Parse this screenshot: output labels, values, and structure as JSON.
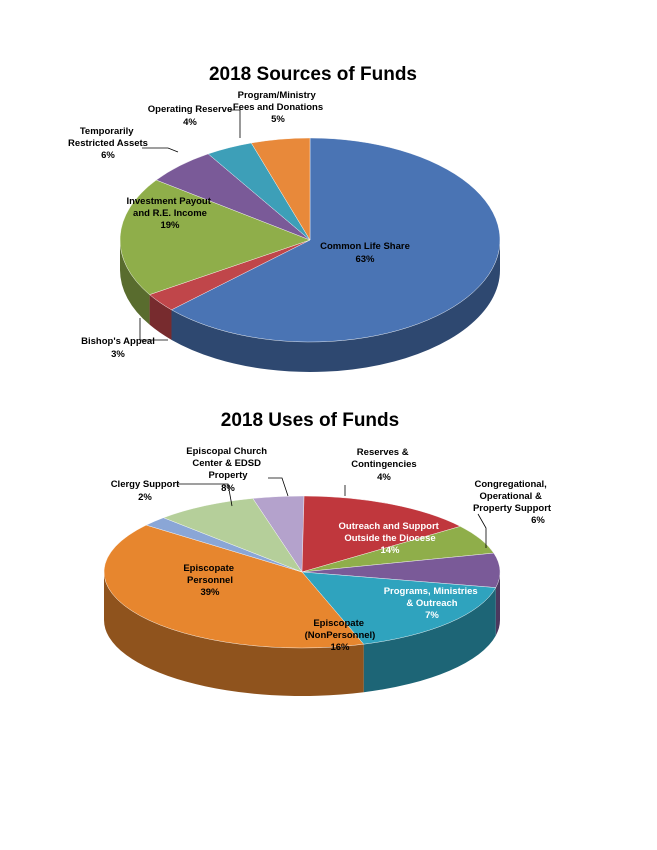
{
  "chart_data": [
    {
      "type": "pie",
      "title": "2018 Sources of Funds",
      "slices": [
        {
          "name": "Common Life Share",
          "value": 63,
          "label": "63%",
          "color": "#4a74b4"
        },
        {
          "name": "Bishop's Appeal",
          "value": 3,
          "label": "3%",
          "color": "#c0464a"
        },
        {
          "name": "Investment Payout and R.E. Income",
          "value": 19,
          "label": "19%",
          "color": "#8fae4a"
        },
        {
          "name": "Temporarily Restricted Assets",
          "value": 6,
          "label": "6%",
          "color": "#7a5a98"
        },
        {
          "name": "Operating Reserve",
          "value": 4,
          "label": "4%",
          "color": "#3d9fb8"
        },
        {
          "name": "Program/Ministry Fees and Donations",
          "value": 5,
          "label": "5%",
          "color": "#e8893a"
        }
      ]
    },
    {
      "type": "pie",
      "title": "2018 Uses of Funds",
      "slices": [
        {
          "name": "Reserves & Contingencies",
          "value": 4,
          "label": "4%",
          "color": "#b4a2cc"
        },
        {
          "name": "Outreach and Support Outside the Diocese",
          "value": 14,
          "label": "14%",
          "color": "#c0373d"
        },
        {
          "name": "Congregational, Operational & Property Support",
          "value": 6,
          "label": "6%",
          "color": "#8fae4a"
        },
        {
          "name": "Programs, Ministries & Outreach",
          "value": 7,
          "label": "7%",
          "color": "#7a5a98"
        },
        {
          "name": "Episcopate (NonPersonnel)",
          "value": 16,
          "label": "16%",
          "color": "#2fa3be"
        },
        {
          "name": "Episcopate Personnel",
          "value": 39,
          "label": "39%",
          "color": "#e7862e"
        },
        {
          "name": "Clergy Support",
          "value": 2,
          "label": "2%",
          "color": "#8aa6d6"
        },
        {
          "name": "Episcopal Church Center & EDSD Property",
          "value": 8,
          "label": "8%",
          "color": "#b5cf9a"
        }
      ]
    }
  ]
}
